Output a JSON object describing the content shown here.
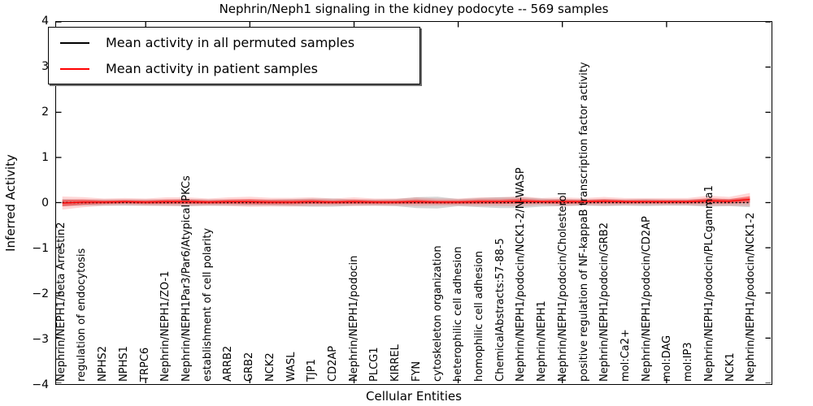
{
  "title": "Nephrin/Neph1 signaling in the kidney podocyte -- 569 samples",
  "axes": {
    "ylabel": "Inferred Activity",
    "xlabel": "Cellular Entities"
  },
  "legend": {
    "items": [
      {
        "label": "Mean activity in all permuted samples",
        "color": "#000000"
      },
      {
        "label": "Mean activity in patient samples",
        "color": "#ff0000"
      }
    ]
  },
  "colors": {
    "permuted_line": "#000000",
    "patient_line": "#ff0000",
    "permuted_band": "rgba(0,0,0,0.16)",
    "patient_band_core": "rgba(255,0,0,0.42)",
    "patient_band_fringe": "rgba(255,0,0,0.16)"
  },
  "chart_data": {
    "type": "line",
    "title": "Nephrin/Neph1 signaling in the kidney podocyte -- 569 samples",
    "xlabel": "Cellular Entities",
    "ylabel": "Inferred Activity",
    "ylim": [
      -4,
      4
    ],
    "grid": false,
    "legend_position": "upper left",
    "yticks": [
      {
        "v": 4,
        "label": "4"
      },
      {
        "v": 3,
        "label": "3"
      },
      {
        "v": 2,
        "label": "2"
      },
      {
        "v": 1,
        "label": "1"
      },
      {
        "v": 0,
        "label": "0"
      },
      {
        "v": -1,
        "label": "−1"
      },
      {
        "v": -2,
        "label": "−2"
      },
      {
        "v": -3,
        "label": "−3"
      },
      {
        "v": -4,
        "label": "−4"
      }
    ],
    "xtick_indices": [
      4,
      9,
      14,
      19,
      24,
      29
    ],
    "categories": [
      "Nephrin/NEPH1/beta Arrestin2",
      "regulation of endocytosis",
      "NPHS2",
      "NPHS1",
      "TRPC6",
      "Nephrin/NEPH1/ZO-1",
      "Nephrin/NEPH1Par3/Par6/Atypical PKCs",
      "establishment of cell polarity",
      "ARRB2",
      "GRB2",
      "NCK2",
      "WASL",
      "TJP1",
      "CD2AP",
      "Nephrin/NEPH1/podocin",
      "PLCG1",
      "KIRREL",
      "FYN",
      "cytoskeleton organization",
      "heterophilic cell adhesion",
      "homophilic cell adhesion",
      "ChemicalAbstracts:57-88-5",
      "Nephrin/NEPH1/podocin/NCK1-2/N-WASP",
      "Nephrin/NEPH1",
      "Nephrin/NEPH1/podocin/Cholesterol",
      "positive regulation of NF-kappaB transcription factor activity",
      "Nephrin/NEPH1/podocin/GRB2",
      "mol:Ca2+",
      "Nephrin/NEPH1/podocin/CD2AP",
      "mol:DAG",
      "mol:IP3",
      "Nephrin/NEPH1/podocin/PLCgamma1",
      "NCK1",
      "Nephrin/NEPH1/podocin/NCK1-2"
    ],
    "series": [
      {
        "name": "Mean activity in all permuted samples",
        "color": "#000000",
        "style": "dotted",
        "values": [
          0,
          0,
          0,
          0,
          0,
          0,
          0,
          0,
          0,
          0,
          0,
          0,
          0,
          0,
          0,
          0,
          0,
          0,
          0,
          0,
          0,
          0,
          0,
          0,
          0,
          0,
          0,
          0,
          0,
          0,
          0,
          0,
          0,
          0
        ],
        "std": [
          0.08,
          0.07,
          0.07,
          0.07,
          0.07,
          0.07,
          0.08,
          0.07,
          0.07,
          0.07,
          0.07,
          0.08,
          0.09,
          0.09,
          0.07,
          0.07,
          0.08,
          0.12,
          0.13,
          0.08,
          0.1,
          0.12,
          0.12,
          0.09,
          0.08,
          0.07,
          0.08,
          0.07,
          0.08,
          0.07,
          0.07,
          0.09,
          0.08,
          0.1
        ]
      },
      {
        "name": "Mean activity in patient samples",
        "color": "#ff0000",
        "style": "solid",
        "values": [
          -0.01,
          0.01,
          0.01,
          0.02,
          0.01,
          0.02,
          0.02,
          0.01,
          0.02,
          0.02,
          0.01,
          0.01,
          0.02,
          0.01,
          0.02,
          0.01,
          0.01,
          0.02,
          0.01,
          0.01,
          0.02,
          0.02,
          0.03,
          0.02,
          0.02,
          0.02,
          0.03,
          0.02,
          0.02,
          0.02,
          0.02,
          0.04,
          0.03,
          0.07
        ],
        "std": [
          0.09,
          0.07,
          0.05,
          0.05,
          0.05,
          0.06,
          0.06,
          0.05,
          0.06,
          0.07,
          0.06,
          0.06,
          0.06,
          0.05,
          0.06,
          0.05,
          0.05,
          0.06,
          0.05,
          0.05,
          0.06,
          0.06,
          0.07,
          0.05,
          0.06,
          0.05,
          0.06,
          0.05,
          0.05,
          0.05,
          0.05,
          0.07,
          0.06,
          0.09
        ]
      }
    ]
  }
}
